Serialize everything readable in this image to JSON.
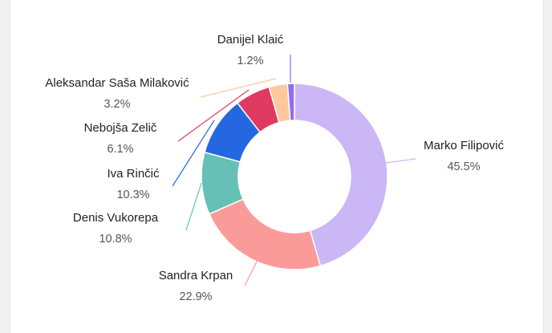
{
  "chart_data": {
    "type": "pie",
    "variant": "donut",
    "title": "",
    "slices": [
      {
        "name": "Marko Filipović",
        "pct_label": "45.5%",
        "value": 45.5,
        "color": "#cbb6f6"
      },
      {
        "name": "Sandra Krpan",
        "pct_label": "22.9%",
        "value": 22.9,
        "color": "#fb9b99"
      },
      {
        "name": "Denis Vukorepa",
        "pct_label": "10.8%",
        "value": 10.8,
        "color": "#67c0b5"
      },
      {
        "name": "Iva Rinčić",
        "pct_label": "10.3%",
        "value": 10.3,
        "color": "#2467e0"
      },
      {
        "name": "Nebojša Zelič",
        "pct_label": "6.1%",
        "value": 6.1,
        "color": "#e03a62"
      },
      {
        "name": "Aleksandar Saša Milaković",
        "pct_label": "3.2%",
        "value": 3.2,
        "color": "#fdc89b"
      },
      {
        "name": "Danijel Klaić",
        "pct_label": "1.2%",
        "value": 1.2,
        "color": "#8f6ff0"
      }
    ]
  }
}
